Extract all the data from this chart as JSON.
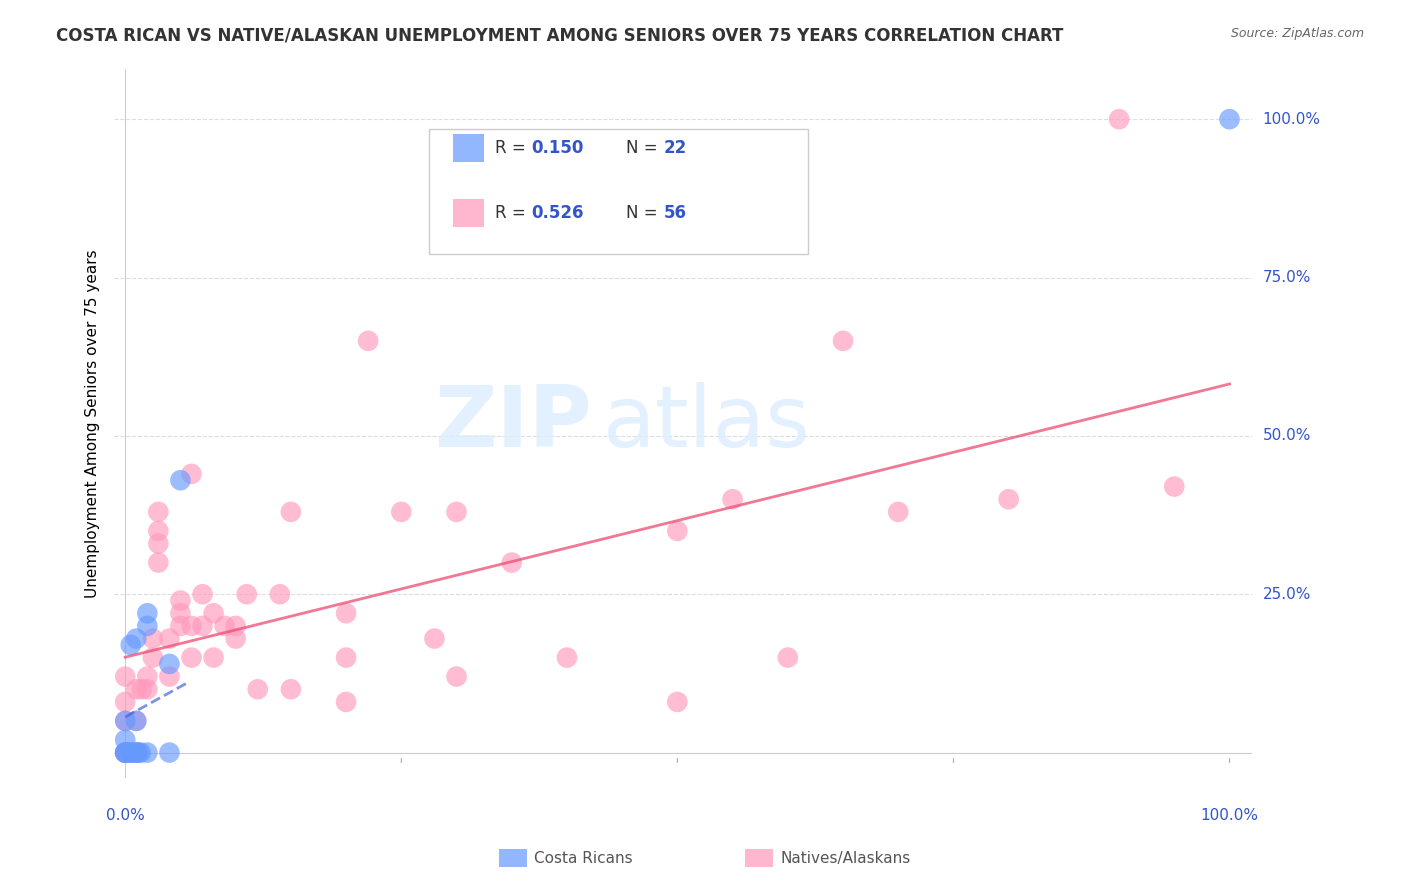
{
  "title": "COSTA RICAN VS NATIVE/ALASKAN UNEMPLOYMENT AMONG SENIORS OVER 75 YEARS CORRELATION CHART",
  "source": "Source: ZipAtlas.com",
  "ylabel": "Unemployment Among Seniors over 75 years",
  "legend_r1": "0.150",
  "legend_n1": "22",
  "legend_r2": "0.526",
  "legend_n2": "56",
  "color_blue": "#6699ff",
  "color_pink": "#ff99bb",
  "color_blue_line": "#4466dd",
  "color_pink_line": "#ee5577",
  "color_blue_text": "#3355cc",
  "blue_x": [
    0.0,
    0.0,
    0.0,
    0.0,
    0.0,
    0.005,
    0.005,
    0.005,
    0.005,
    0.01,
    0.01,
    0.01,
    0.01,
    0.012,
    0.014,
    0.02,
    0.02,
    0.02,
    0.04,
    0.04,
    0.05,
    1.0
  ],
  "blue_y": [
    0.0,
    0.0,
    0.0,
    0.02,
    0.05,
    0.0,
    0.0,
    0.0,
    0.17,
    0.0,
    0.0,
    0.05,
    0.18,
    0.0,
    0.0,
    0.0,
    0.2,
    0.22,
    0.0,
    0.14,
    0.43,
    1.0
  ],
  "pink_x": [
    0.0,
    0.0,
    0.0,
    0.0,
    0.0,
    0.01,
    0.01,
    0.01,
    0.015,
    0.02,
    0.02,
    0.025,
    0.025,
    0.03,
    0.03,
    0.03,
    0.03,
    0.04,
    0.04,
    0.05,
    0.05,
    0.05,
    0.06,
    0.06,
    0.06,
    0.07,
    0.07,
    0.08,
    0.08,
    0.09,
    0.1,
    0.1,
    0.11,
    0.12,
    0.14,
    0.15,
    0.15,
    0.2,
    0.2,
    0.2,
    0.22,
    0.25,
    0.28,
    0.3,
    0.3,
    0.35,
    0.4,
    0.5,
    0.5,
    0.55,
    0.6,
    0.65,
    0.7,
    0.8,
    0.9,
    0.95
  ],
  "pink_y": [
    0.0,
    0.0,
    0.05,
    0.08,
    0.12,
    0.0,
    0.05,
    0.1,
    0.1,
    0.1,
    0.12,
    0.15,
    0.18,
    0.3,
    0.33,
    0.35,
    0.38,
    0.12,
    0.18,
    0.2,
    0.22,
    0.24,
    0.15,
    0.2,
    0.44,
    0.2,
    0.25,
    0.15,
    0.22,
    0.2,
    0.18,
    0.2,
    0.25,
    0.1,
    0.25,
    0.38,
    0.1,
    0.22,
    0.08,
    0.15,
    0.65,
    0.38,
    0.18,
    0.38,
    0.12,
    0.3,
    0.15,
    0.35,
    0.08,
    0.4,
    0.15,
    0.65,
    0.38,
    0.4,
    1.0,
    0.42
  ],
  "ytick_vals": [
    0.0,
    0.25,
    0.5,
    0.75,
    1.0
  ],
  "ytick_labels": [
    "",
    "25.0%",
    "50.0%",
    "75.0%",
    "100.0%"
  ],
  "xtick_vals": [
    0.0,
    0.25,
    0.5,
    0.75,
    1.0
  ]
}
